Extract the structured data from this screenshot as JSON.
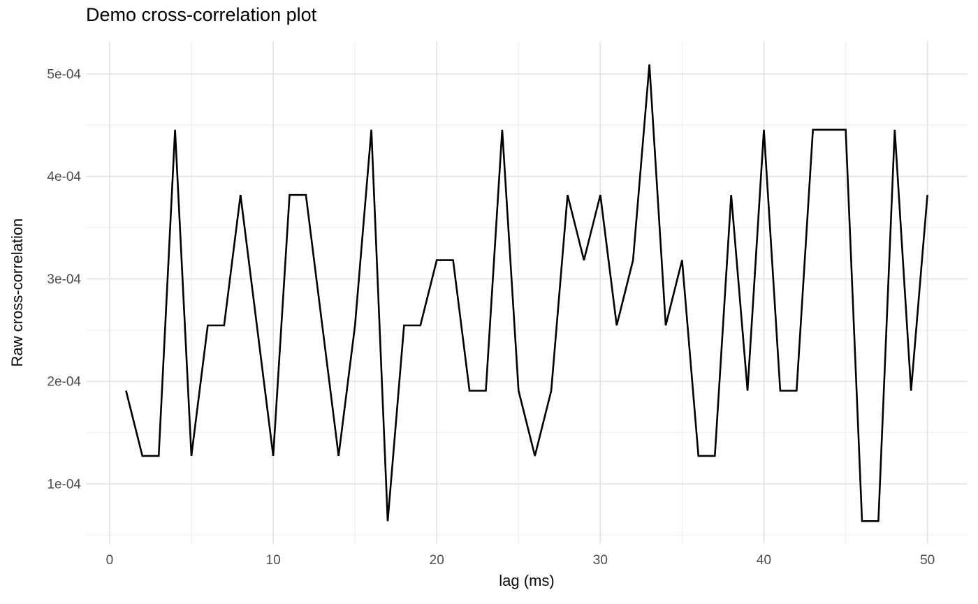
{
  "chart_data": {
    "type": "line",
    "title": "Demo cross-correlation plot",
    "xlabel": "lag (ms)",
    "ylabel": "Raw cross-correlation",
    "legend": null,
    "grid": true,
    "background": "#FFFFFF",
    "line_color": "#000000",
    "grid_color_major": "#E2E2E2",
    "grid_color_minor": "#EDEDED",
    "tick_label_color": "#4D4D4D",
    "xlim": [
      -1.45,
      52.45
    ],
    "ylim": [
      4.14e-05,
      0.000532
    ],
    "x_ticks": {
      "major": [
        0,
        10,
        20,
        30,
        40,
        50
      ],
      "minor": [
        5,
        15,
        25,
        35,
        45
      ],
      "labels": [
        "0",
        "10",
        "20",
        "30",
        "40",
        "50"
      ]
    },
    "y_ticks": {
      "major": [
        0.0001,
        0.0002,
        0.0003,
        0.0004,
        0.0005
      ],
      "minor": [
        5e-05,
        0.00015,
        0.00025,
        0.00035,
        0.00045
      ],
      "labels": [
        "1e-04",
        "2e-04",
        "3e-04",
        "4e-04",
        "5e-04"
      ]
    },
    "x": [
      1,
      2,
      3,
      4,
      5,
      6,
      7,
      8,
      9,
      10,
      11,
      12,
      13,
      14,
      15,
      16,
      17,
      18,
      19,
      20,
      21,
      22,
      23,
      24,
      25,
      26,
      27,
      28,
      29,
      30,
      31,
      32,
      33,
      34,
      35,
      36,
      37,
      38,
      39,
      40,
      41,
      42,
      43,
      44,
      45,
      46,
      47,
      48,
      49,
      50
    ],
    "values": [
      0.00019099,
      0.00012732,
      0.00012732,
      0.00044563,
      0.00012732,
      0.00025465,
      0.00025465,
      0.00038197,
      0.00025465,
      0.00012732,
      0.00038197,
      0.00038197,
      0.00025465,
      0.00012732,
      0.00025465,
      0.00044563,
      6.366e-05,
      0.00025465,
      0.00025465,
      0.00031831,
      0.00031831,
      0.00019099,
      0.00019099,
      0.00044563,
      0.00019099,
      0.00012732,
      0.00019099,
      0.00038197,
      0.00031831,
      0.00038197,
      0.00025465,
      0.00031831,
      0.0005093,
      0.00025465,
      0.00031831,
      0.00012732,
      0.00012732,
      0.00038197,
      0.00019099,
      0.00044563,
      0.00019099,
      0.00019099,
      0.00044563,
      0.00044563,
      0.00044563,
      6.366e-05,
      6.366e-05,
      0.00044563,
      0.00019099,
      0.00038197
    ]
  }
}
